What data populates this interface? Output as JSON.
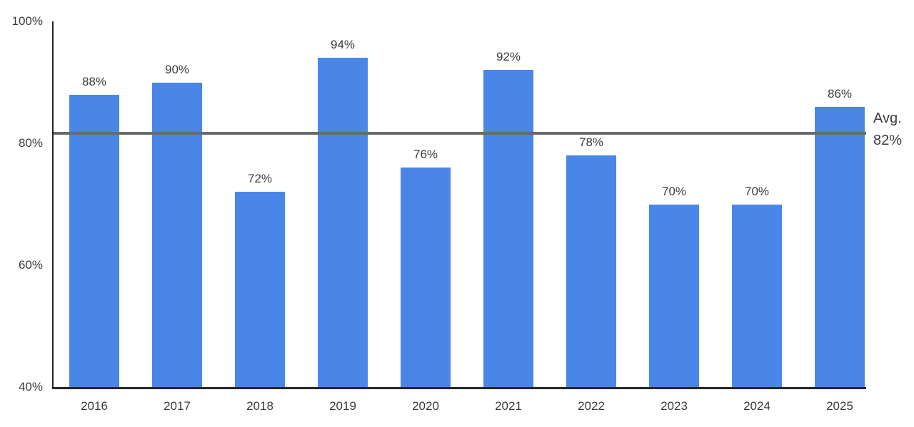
{
  "chart_data": {
    "type": "bar",
    "title": "",
    "categories": [
      "2016",
      "2017",
      "2018",
      "2019",
      "2020",
      "2021",
      "2022",
      "2023",
      "2024",
      "2025"
    ],
    "values": [
      88,
      90,
      72,
      94,
      76,
      92,
      78,
      70,
      70,
      86
    ],
    "value_labels": [
      "88%",
      "90%",
      "72%",
      "94%",
      "76%",
      "92%",
      "78%",
      "70%",
      "70%",
      "86%"
    ],
    "xlabel": "",
    "ylabel": "",
    "ylim": [
      40,
      100
    ],
    "yticks": [
      40,
      60,
      80,
      100
    ],
    "ytick_labels": [
      "40%",
      "60%",
      "80%",
      "100%"
    ],
    "grid": false,
    "legend": "none",
    "bar_color": "#4a86e8",
    "axis_color": "#262626",
    "label_color": "#3b3b3b",
    "average_line": {
      "color": "#6a6a6a",
      "label_lines": [
        "Avg.",
        "82%"
      ]
    }
  }
}
